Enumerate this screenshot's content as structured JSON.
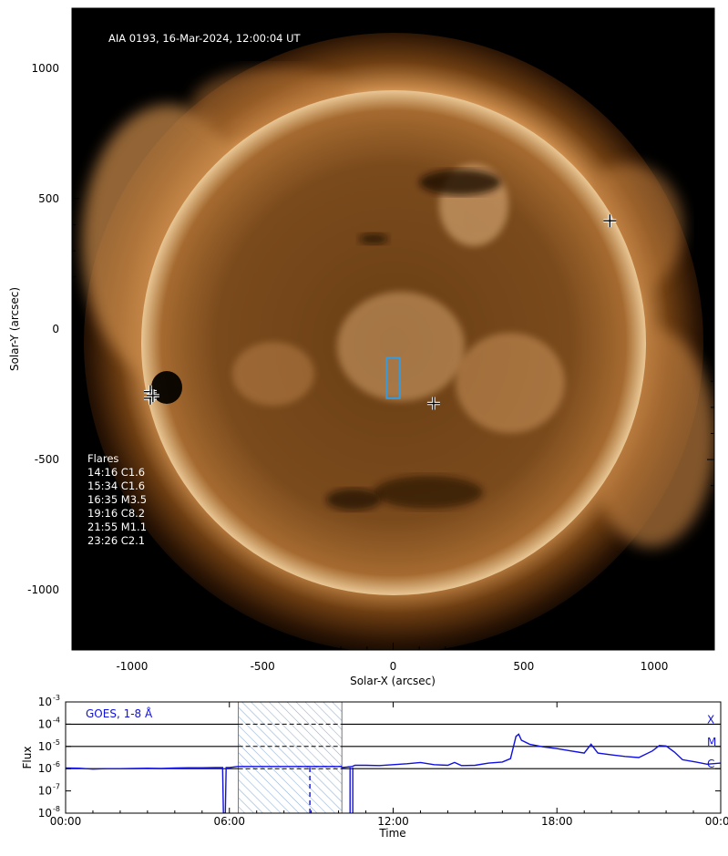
{
  "image_panel": {
    "title": "AIA 0193, 16-Mar-2024, 12:00:04 UT",
    "xlabel": "Solar-X (arcsec)",
    "ylabel": "Solar-Y (arcsec)",
    "flares_heading": "Flares",
    "flares": [
      "14:16 C1.6",
      "15:34 C1.6",
      "16:35 M3.5",
      "19:16 C8.2",
      "21:55 M1.1",
      "23:26 C2.1"
    ],
    "colors": {
      "background": "#000000",
      "disk_core": "#6e4318",
      "disk_limb": "#f4d4a8",
      "box": "#3a9ad9",
      "marker": "#000000"
    }
  },
  "goes_panel": {
    "label": "GOES, 1-8 Å",
    "xlabel": "Time",
    "ylabel": "Flux",
    "class_labels": [
      "X",
      "M",
      "C"
    ],
    "colors": {
      "line": "#1010e0",
      "hatch": "#8eaed6"
    }
  },
  "chart_data": [
    {
      "type": "heatmap",
      "title": "AIA 0193, 16-Mar-2024, 12:00:04 UT",
      "xlabel": "Solar-X (arcsec)",
      "ylabel": "Solar-Y (arcsec)",
      "xlim": [
        -1230,
        1230
      ],
      "ylim": [
        -1230,
        1230
      ],
      "xticks": [
        -1000,
        -500,
        0,
        500,
        1000
      ],
      "yticks": [
        -1000,
        -500,
        0,
        500,
        1000
      ],
      "xtick_labels": [
        "-1000",
        "-500",
        "0",
        "500",
        "1000"
      ],
      "ytick_labels": [
        "-1000",
        "-500",
        "0",
        "500",
        "1000"
      ],
      "solar_radius_arcsec": 965,
      "flare_markers": [
        {
          "x": -930,
          "y": -240
        },
        {
          "x": -930,
          "y": -265
        },
        {
          "x": -920,
          "y": -255
        },
        {
          "x": 830,
          "y": 415
        },
        {
          "x": 155,
          "y": -285
        }
      ],
      "box": {
        "x": [
          -25,
          25
        ],
        "y": [
          -265,
          -110
        ]
      }
    },
    {
      "type": "line",
      "title": "GOES, 1-8 Å",
      "xlabel": "Time",
      "ylabel": "Flux",
      "xlim": [
        0,
        24
      ],
      "ylim_log10": [
        -8,
        -3
      ],
      "yscale": "log",
      "xticks": [
        0,
        6,
        12,
        18,
        24
      ],
      "xtick_labels": [
        "00:00",
        "06:00",
        "12:00",
        "18:00",
        "00:00"
      ],
      "ytick_exponents": [
        -3,
        -4,
        -5,
        -6,
        -7,
        -8
      ],
      "class_levels": [
        {
          "label": "X",
          "log10_flux": -4
        },
        {
          "label": "M",
          "log10_flux": -5
        },
        {
          "label": "C",
          "log10_flux": -6
        }
      ],
      "shaded_interval_hours": [
        6.33,
        10.12
      ],
      "series": [
        {
          "x": [
            0,
            0.5,
            1.0,
            1.5,
            2.0,
            2.5,
            3.0,
            3.5,
            4.0,
            4.5,
            5.0,
            5.5,
            5.75,
            5.78,
            5.85,
            5.88,
            6.0,
            6.3,
            8.5,
            9.0,
            9.5,
            10.1,
            10.12,
            10.5,
            10.6,
            11.0,
            11.5,
            12.0,
            12.5,
            13.0,
            13.5,
            14.0,
            14.25,
            14.5,
            15.0,
            15.5,
            16.0,
            16.3,
            16.5,
            16.6,
            16.7,
            17.0,
            17.5,
            18.0,
            18.5,
            19.0,
            19.25,
            19.5,
            20.0,
            20.5,
            21.0,
            21.5,
            21.75,
            22.0,
            22.3,
            22.6,
            23.0,
            23.5,
            24.0
          ],
          "log10_flux": [
            -5.97,
            -5.98,
            -6.02,
            -6.0,
            -6.0,
            -5.99,
            -5.98,
            -5.99,
            -5.97,
            -5.96,
            -5.96,
            -5.95,
            -5.95,
            -8.0,
            -8.0,
            -5.95,
            -5.95,
            -5.9,
            -5.9,
            -5.9,
            -5.9,
            -5.9,
            -5.95,
            -5.9,
            -5.85,
            -5.85,
            -5.86,
            -5.82,
            -5.78,
            -5.72,
            -5.82,
            -5.85,
            -5.72,
            -5.86,
            -5.85,
            -5.75,
            -5.7,
            -5.55,
            -4.55,
            -4.45,
            -4.72,
            -4.9,
            -5.02,
            -5.1,
            -5.2,
            -5.3,
            -4.9,
            -5.3,
            -5.38,
            -5.45,
            -5.5,
            -5.2,
            -4.96,
            -4.98,
            -5.25,
            -5.6,
            -5.68,
            -5.8,
            -5.75
          ]
        }
      ]
    }
  ]
}
